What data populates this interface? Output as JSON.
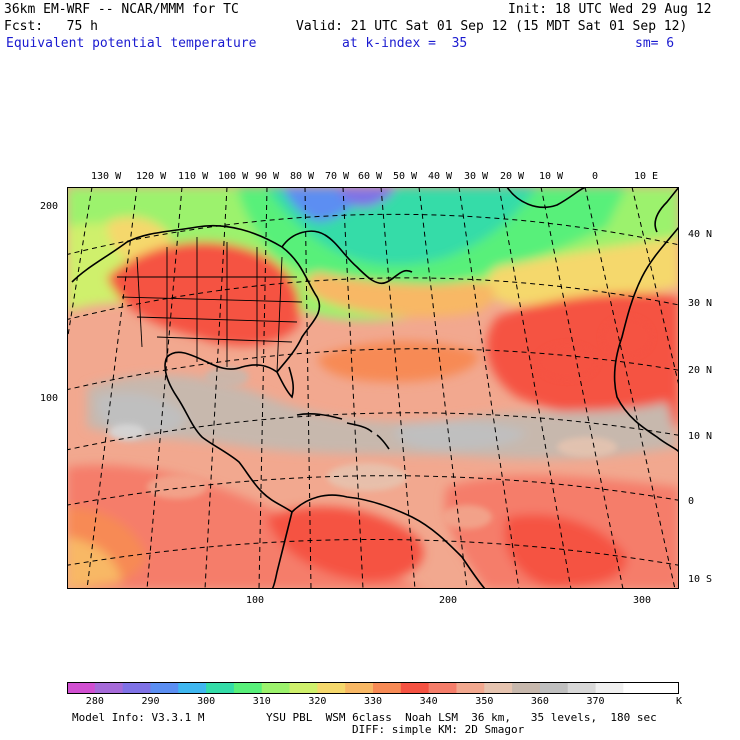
{
  "header": {
    "model": "36km EM-WRF -- NCAR/MMM for TC",
    "init": "Init: 18 UTC Wed 29 Aug 12",
    "fcst": "Fcst:   75 h",
    "valid": "Valid: 21 UTC Sat 01 Sep 12 (15 MDT Sat 01 Sep 12)",
    "field": "Equivalent potential temperature",
    "level": "at k-index =  35",
    "smooth": "sm= 6"
  },
  "map": {
    "top_lon_labels": [
      "130 W",
      "120 W",
      "110 W",
      "100 W",
      "90 W",
      "80 W",
      "70 W",
      "60 W",
      "50 W",
      "40 W",
      "30 W",
      "20 W",
      "10 W",
      "0",
      "10 E"
    ],
    "right_lat_labels": [
      "40 N",
      "30 N",
      "20 N",
      "10 N",
      "0",
      "10 S"
    ],
    "left_grid_labels": [
      "200",
      "100"
    ],
    "bottom_grid_labels": [
      "100",
      "200",
      "300"
    ],
    "projection_note": ""
  },
  "colorbar": {
    "colors": [
      "#d14fd1",
      "#a66bd9",
      "#7f72e6",
      "#5b8ef2",
      "#3fb7f0",
      "#34dca8",
      "#58f07a",
      "#9cf26d",
      "#cff06c",
      "#f5d86c",
      "#f8b865",
      "#f78a55",
      "#f55242",
      "#f57d6a",
      "#f2a88f",
      "#e6c4b0",
      "#c7b8ad",
      "#bfbfbf",
      "#d8d8d8",
      "#f0f0f0",
      "#ffffff",
      "#ffffff"
    ],
    "labels": [
      "280",
      "290",
      "300",
      "310",
      "320",
      "330",
      "340",
      "350",
      "360",
      "370"
    ],
    "unit": "K"
  },
  "footer": {
    "model_info": "Model Info: V3.3.1 M",
    "physics_line1": "YSU PBL  WSM 6class  Noah LSM  36 km,   35 levels,  180 sec",
    "physics_line2": "DIFF: simple KM: 2D Smagor"
  }
}
